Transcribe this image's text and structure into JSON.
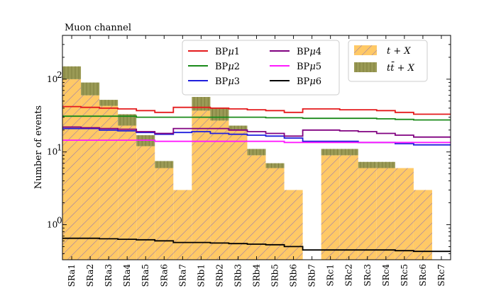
{
  "chart_data": {
    "type": "bar",
    "title": "Muon channel",
    "xlabel": "",
    "ylabel": "Number of events",
    "yscale": "log",
    "ylim": [
      0.33,
      400
    ],
    "yticks": [
      1,
      10,
      100
    ],
    "ytick_labels": [
      "10",
      "10",
      "10"
    ],
    "ytick_exponents": [
      "0",
      "1",
      "2"
    ],
    "categories": [
      "SRa1",
      "SRa2",
      "SRa3",
      "SRa4",
      "SRa5",
      "SRa6",
      "SRa7",
      "SRb1",
      "SRb2",
      "SRb3",
      "SRb4",
      "SRb5",
      "SRb6",
      "SRb7",
      "SRc1",
      "SRc2",
      "SRc3",
      "SRc4",
      "SRc5",
      "SRc6",
      "SRc7"
    ],
    "stack": [
      {
        "name": "t + X",
        "base": "t",
        "rest": " + X",
        "color": "#ffc966",
        "hatch": true,
        "values": [
          100,
          60,
          43,
          23,
          12,
          6,
          3,
          37,
          27,
          20,
          9,
          6,
          3,
          0,
          9,
          9,
          6,
          6,
          6,
          3,
          0
        ]
      },
      {
        "name": "tt̄ + X",
        "base": "tt̄",
        "rest": " + X",
        "color": "#9a9a55",
        "values": [
          50,
          30,
          9,
          10,
          5,
          1.5,
          0,
          20,
          13,
          3,
          2,
          1,
          0,
          0,
          2,
          2,
          1.3,
          1.3,
          0,
          0,
          0
        ]
      }
    ],
    "lines": [
      {
        "name": "BPμ1",
        "label_base": "BP",
        "label_mu": "μ",
        "label_num": "1",
        "color": "#e41a1c",
        "values": [
          42,
          41,
          40,
          39,
          37,
          35,
          41,
          41,
          40,
          39,
          38,
          37,
          35,
          39,
          39,
          38,
          38,
          37,
          35,
          33,
          33
        ]
      },
      {
        "name": "BPμ2",
        "label_base": "BP",
        "label_mu": "μ",
        "label_num": "2",
        "color": "#1a8a1a",
        "values": [
          31,
          31,
          31,
          31,
          30,
          30,
          30,
          30,
          30,
          30,
          30,
          29.5,
          29.5,
          29,
          29,
          29,
          29,
          28.5,
          28,
          27.5,
          27.5
        ]
      },
      {
        "name": "BPμ3",
        "label_base": "BP",
        "label_mu": "μ",
        "label_num": "3",
        "color": "#1f1fdd",
        "values": [
          21,
          21,
          20,
          19.5,
          18.5,
          17.5,
          18.5,
          19,
          18,
          17.5,
          17,
          16.5,
          15.5,
          14,
          14,
          14,
          13.5,
          13.5,
          13,
          12.5,
          12.5
        ]
      },
      {
        "name": "BPμ4",
        "label_base": "BP",
        "label_mu": "μ",
        "label_num": "4",
        "color": "#800080",
        "values": [
          22,
          21.5,
          21,
          20.5,
          19,
          18,
          21,
          21,
          21,
          20,
          19,
          18,
          16.5,
          20,
          20,
          19.5,
          19,
          18,
          17,
          16,
          16
        ]
      },
      {
        "name": "BPμ5",
        "label_base": "BP",
        "label_mu": "μ",
        "label_num": "5",
        "color": "#ff1aff",
        "values": [
          14.5,
          14.5,
          14.5,
          14.5,
          14.5,
          14,
          14,
          14,
          14,
          14,
          14,
          14,
          13.5,
          13.5,
          13.5,
          13.5,
          13.5,
          13.5,
          13.5,
          13.5,
          13.5
        ]
      },
      {
        "name": "BPμ6",
        "label_base": "BP",
        "label_mu": "μ",
        "label_num": "6",
        "color": "#000000",
        "values": [
          0.65,
          0.65,
          0.64,
          0.63,
          0.62,
          0.6,
          0.57,
          0.57,
          0.56,
          0.55,
          0.54,
          0.53,
          0.5,
          0.45,
          0.45,
          0.45,
          0.45,
          0.45,
          0.44,
          0.43,
          0.43
        ]
      }
    ],
    "legend_position": "top"
  }
}
